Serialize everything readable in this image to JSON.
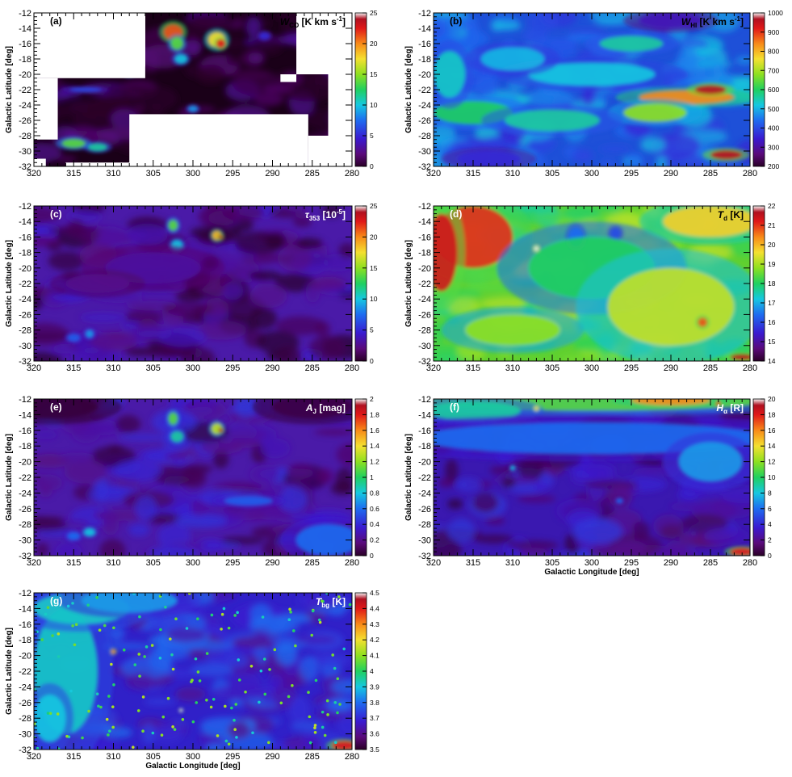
{
  "figure": {
    "xlabel": "Galactic Longitude [deg]",
    "ylabel": "Galactic Latitude [deg]",
    "x_ticks": [
      "320",
      "315",
      "310",
      "305",
      "300",
      "295",
      "290",
      "285",
      "280"
    ],
    "y_ticks": [
      "-12",
      "-14",
      "-16",
      "-18",
      "-20",
      "-22",
      "-24",
      "-26",
      "-28",
      "-30",
      "-32"
    ]
  },
  "chart_data": [
    {
      "type": "heatmap",
      "panel": "(a)",
      "title_main": "W",
      "title_sub": "CO",
      "title_unit": " [K km s",
      "title_exp": "-1",
      "title_close": "]",
      "colorbar_ticks": [
        "0",
        "5",
        "10",
        "15",
        "20",
        "25"
      ],
      "colorscale_range": [
        0,
        25
      ],
      "xlim": [
        320,
        280
      ],
      "ylim": [
        -32,
        -12
      ],
      "x_axis_label_shown": false,
      "features": [
        "molecular clouds near l=303,b=-15 and l=297,b=-16",
        "Chamaeleon region l=315,b=-29",
        "survey coverage irregular, white outside"
      ]
    },
    {
      "type": "heatmap",
      "panel": "(b)",
      "title_main": "W",
      "title_sub": "HI",
      "title_unit": " [K km s",
      "title_exp": "-1",
      "title_close": "]",
      "colorbar_ticks": [
        "200",
        "300",
        "400",
        "500",
        "600",
        "700",
        "800",
        "900",
        "1000"
      ],
      "colorscale_range": [
        200,
        1000
      ],
      "xlim": [
        320,
        280
      ],
      "ylim": [
        -32,
        -12
      ],
      "x_axis_label_shown": false
    },
    {
      "type": "heatmap",
      "panel": "(c)",
      "title_main": "τ",
      "title_sub": "353",
      "title_unit": " [10",
      "title_exp": "-5",
      "title_close": "]",
      "colorbar_ticks": [
        "0",
        "5",
        "10",
        "15",
        "20",
        "25"
      ],
      "colorscale_range": [
        0,
        25
      ],
      "xlim": [
        320,
        280
      ],
      "ylim": [
        -32,
        -12
      ],
      "x_axis_label_shown": false
    },
    {
      "type": "heatmap",
      "panel": "(d)",
      "title_main": "T",
      "title_sub": "d",
      "title_unit": " [K]",
      "title_exp": "",
      "title_close": "",
      "colorbar_ticks": [
        "14",
        "15",
        "16",
        "17",
        "18",
        "19",
        "20",
        "21",
        "22"
      ],
      "colorscale_range": [
        14,
        22
      ],
      "xlim": [
        320,
        280
      ],
      "ylim": [
        -32,
        -12
      ],
      "x_axis_label_shown": false
    },
    {
      "type": "heatmap",
      "panel": "(e)",
      "title_main": "A",
      "title_sub": "J",
      "title_unit": " [mag]",
      "title_exp": "",
      "title_close": "",
      "colorbar_ticks": [
        "0",
        "0.2",
        "0.4",
        "0.6",
        "0.8",
        "1",
        "1.2",
        "1.4",
        "1.6",
        "1.8",
        "2"
      ],
      "colorscale_range": [
        0,
        2
      ],
      "xlim": [
        320,
        280
      ],
      "ylim": [
        -32,
        -12
      ],
      "x_axis_label_shown": false
    },
    {
      "type": "heatmap",
      "panel": "(f)",
      "title_main": "H",
      "title_sub": "α",
      "title_unit": " [R]",
      "title_exp": "",
      "title_close": "",
      "colorbar_ticks": [
        "0",
        "2",
        "4",
        "6",
        "8",
        "10",
        "12",
        "14",
        "16",
        "18",
        "20"
      ],
      "colorscale_range": [
        0,
        20
      ],
      "xlim": [
        320,
        280
      ],
      "ylim": [
        -32,
        -12
      ],
      "x_axis_label_shown": true
    },
    {
      "type": "heatmap",
      "panel": "(g)",
      "title_main": "T",
      "title_sub": "bg",
      "title_unit": " [K]",
      "title_exp": "",
      "title_close": "",
      "colorbar_ticks": [
        "3.5",
        "3.6",
        "3.7",
        "3.8",
        "3.9",
        "4",
        "4.1",
        "4.2",
        "4.3",
        "4.4",
        "4.5"
      ],
      "colorscale_range": [
        3.5,
        4.5
      ],
      "xlim": [
        320,
        280
      ],
      "ylim": [
        -32,
        -12
      ],
      "x_axis_label_shown": true
    }
  ]
}
